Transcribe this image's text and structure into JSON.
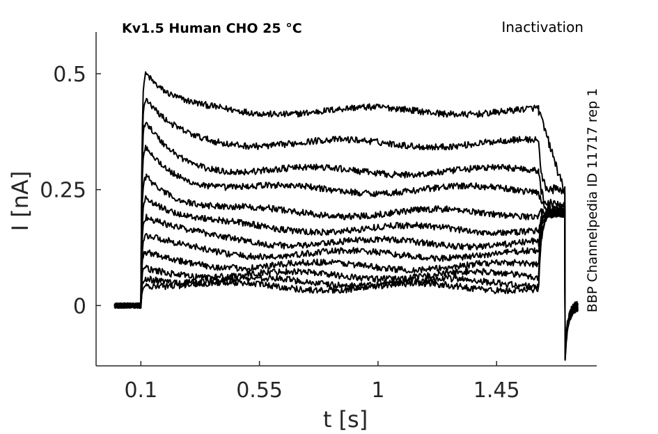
{
  "chart_data": {
    "type": "line",
    "title": "Kv1.5  Human  CHO  25 °C",
    "subtitle": "Inactivation",
    "side_label": "BBP Channelpedia ID 11717 rep 1",
    "xlabel": "t [s]",
    "ylabel": "I [nA]",
    "xlim": [
      -0.07,
      1.83
    ],
    "ylim": [
      -0.13,
      0.59
    ],
    "xticks": [
      0.1,
      0.55,
      1,
      1.45
    ],
    "xtick_labels": [
      "0.1",
      "0.55",
      "1",
      "1.45"
    ],
    "yticks": [
      0,
      0.25,
      0.5
    ],
    "ytick_labels": [
      "0",
      "0.25",
      "0.5"
    ],
    "grid": false,
    "line_color": "#000000",
    "protocol_s": {
      "rec_start": 0.0,
      "step_on": 0.1,
      "step_off": 1.61,
      "pulse_end": 1.71,
      "rec_end": 1.76
    },
    "series": [
      {
        "peak": 0.52,
        "steady": 0.42,
        "tail": 0.3
      },
      {
        "peak": 0.46,
        "steady": 0.35,
        "tail": 0.25
      },
      {
        "peak": 0.41,
        "steady": 0.29,
        "tail": 0.22
      },
      {
        "peak": 0.36,
        "steady": 0.25,
        "tail": 0.21
      },
      {
        "peak": 0.3,
        "steady": 0.2,
        "tail": 0.2
      },
      {
        "peak": 0.25,
        "steady": 0.165,
        "tail": 0.2
      },
      {
        "peak": 0.2,
        "steady": 0.135,
        "tail": 0.2
      },
      {
        "peak": 0.15,
        "steady": 0.11,
        "tail": 0.2
      },
      {
        "peak": 0.11,
        "steady": 0.085,
        "tail": 0.2
      },
      {
        "peak": 0.08,
        "steady": 0.065,
        "tail": 0.2
      },
      {
        "peak": 0.065,
        "steady": 0.05,
        "tail": 0.2
      },
      {
        "peak": 0.05,
        "steady": 0.04,
        "tail": 0.2
      }
    ]
  }
}
